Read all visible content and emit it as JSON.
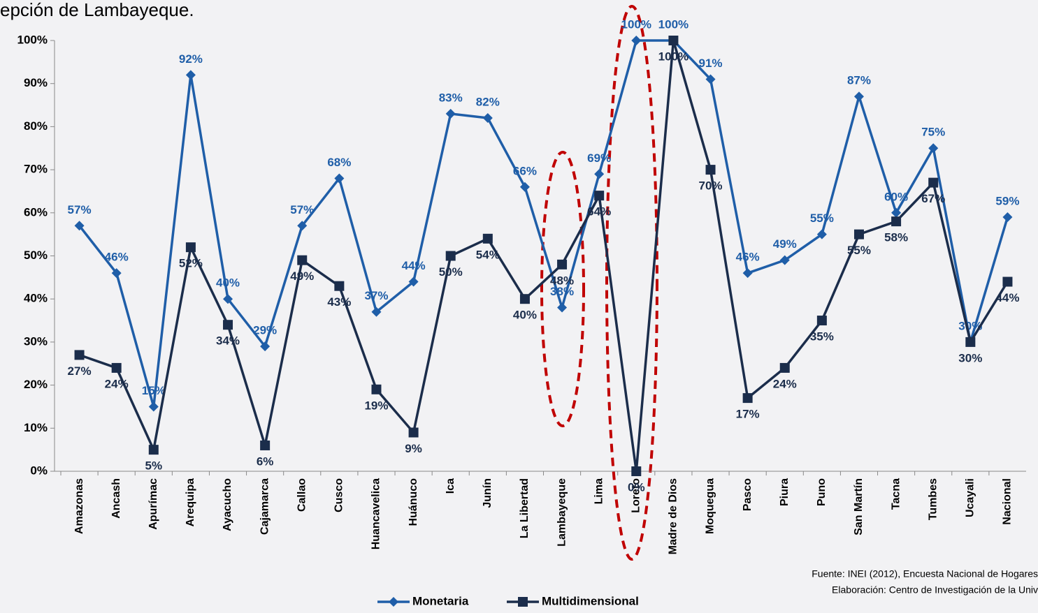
{
  "chart_data": {
    "type": "line",
    "title": "epción de Lambayeque.",
    "categories": [
      "Amazonas",
      "Ancash",
      "Apurímac",
      "Arequipa",
      "Ayacucho",
      "Cajamarca",
      "Callao",
      "Cusco",
      "Huancavelica",
      "Huánuco",
      "Ica",
      "Junín",
      "La Libertad",
      "Lambayeque",
      "Lima",
      "Loreto",
      "Madre de Dios",
      "Moquegua",
      "Pasco",
      "Piura",
      "Puno",
      "San Martín",
      "Tacna",
      "Tumbes",
      "Ucayali",
      "Nacional"
    ],
    "series": [
      {
        "name": "Monetaria",
        "color": "#1f5ea8",
        "values": [
          57,
          46,
          15,
          92,
          40,
          29,
          57,
          68,
          37,
          44,
          83,
          82,
          66,
          38,
          69,
          100,
          100,
          91,
          46,
          49,
          55,
          87,
          60,
          75,
          30,
          59
        ],
        "value_labels": [
          "57%",
          "46%",
          "15%",
          "92%",
          "40%",
          "29%",
          "57%",
          "68%",
          "37%",
          "44%",
          "83%",
          "82%",
          "66%",
          "38%",
          "69%",
          "100%",
          "100%",
          "91%",
          "46%",
          "49%",
          "55%",
          "87%",
          "60%",
          "75%",
          "30%",
          "59%"
        ]
      },
      {
        "name": "Multidimensional",
        "color": "#1b2d4b",
        "values": [
          27,
          24,
          5,
          52,
          34,
          6,
          49,
          43,
          19,
          9,
          50,
          54,
          40,
          48,
          64,
          0,
          100,
          70,
          17,
          24,
          35,
          55,
          58,
          67,
          30,
          44
        ],
        "value_labels": [
          "27%",
          "24%",
          "5%",
          "52%",
          "34%",
          "6%",
          "49%",
          "43%",
          "19%",
          "9%",
          "50%",
          "54%",
          "40%",
          "48%",
          "64%",
          "0%",
          "100%",
          "70%",
          "17%",
          "24%",
          "35%",
          "55%",
          "58%",
          "67%",
          "30%",
          "44%"
        ]
      }
    ],
    "ylim": [
      0,
      100
    ],
    "yticks": [
      {
        "value": 0,
        "label": "0%"
      },
      {
        "value": 10,
        "label": "10%"
      },
      {
        "value": 20,
        "label": "20%"
      },
      {
        "value": 30,
        "label": "30%"
      },
      {
        "value": 40,
        "label": "40%"
      },
      {
        "value": 50,
        "label": "50%"
      },
      {
        "value": 60,
        "label": "60%"
      },
      {
        "value": 70,
        "label": "70%"
      },
      {
        "value": 80,
        "label": "80%"
      },
      {
        "value": 90,
        "label": "90%"
      },
      {
        "value": 100,
        "label": "100%"
      }
    ],
    "source": [
      "Fuente: INEI (2012), Encuesta Nacional de Hogares",
      "Elaboración: Centro de Investigación de la Univ"
    ],
    "grid": false
  }
}
